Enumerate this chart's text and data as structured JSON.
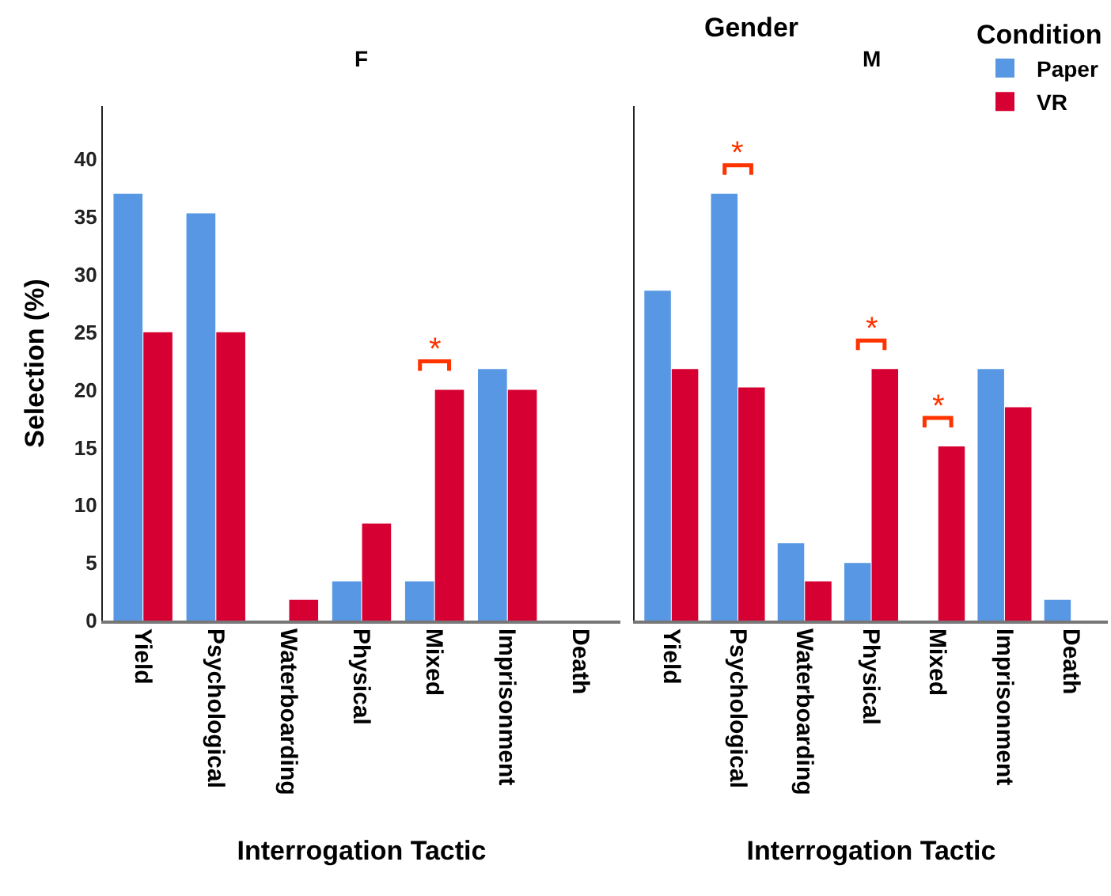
{
  "chart_data": [
    {
      "type": "bar",
      "title": "F",
      "xlabel": "Interrogation Tactic",
      "ylabel": "Selection (%)",
      "categories": [
        "Yield",
        "Psychological",
        "Waterboarding",
        "Physical",
        "Mixed",
        "Imprisonment",
        "Death"
      ],
      "series": [
        {
          "color": "#5797e3",
          "values": [
            37.0,
            35.3,
            0,
            3.4,
            3.4,
            21.8,
            0
          ]
        },
        {
          "color": "#d70033",
          "values": [
            25.0,
            25.0,
            1.8,
            8.4,
            20.0,
            20.0,
            0
          ]
        }
      ],
      "ylim": [
        0,
        44.6
      ],
      "yticks": [
        0,
        5,
        10,
        15,
        20,
        25,
        30,
        35,
        40
      ],
      "grid": false,
      "annotations": [
        {
          "text": "*",
          "x": "Mixed",
          "y": 20.0
        }
      ]
    },
    {
      "type": "bar",
      "title": "M",
      "xlabel": "Interrogation Tactic",
      "legend_title": "Condition",
      "legend": "top right",
      "categories": [
        "Yield",
        "Psychological",
        "Waterboarding",
        "Physical",
        "Mixed",
        "Imprisonment",
        "Death"
      ],
      "series": [
        {
          "name": "Paper",
          "color": "#5797e3",
          "values": [
            28.6,
            37.0,
            6.7,
            5.0,
            0,
            21.8,
            1.8
          ]
        },
        {
          "name": "VR",
          "color": "#d70033",
          "values": [
            21.8,
            20.2,
            3.4,
            21.8,
            15.1,
            18.5,
            0
          ]
        }
      ],
      "ylim": [
        0,
        44.6
      ],
      "yticks": [
        0,
        5,
        10,
        15,
        20,
        25,
        30,
        35,
        40
      ],
      "grid": false,
      "tick_labels": "x",
      "annotations": [
        "Gender",
        {
          "text": "*",
          "x": "Psychological",
          "y": 37.0
        },
        {
          "text": "*",
          "x": "Physical",
          "y": 21.8
        },
        {
          "text": "*",
          "x": "Mixed",
          "y": 15.1
        }
      ]
    }
  ]
}
